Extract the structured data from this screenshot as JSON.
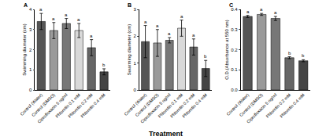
{
  "chart_data": [
    {
      "type": "bar",
      "title": "A",
      "ylabel": "Swimming diameter (cm)",
      "categories": [
        "Control (Water)",
        "Control (DMSO)",
        "Ciprofloxacin 5 ng/ml",
        "Phloretin 0.1 mM",
        "Phloretin 0.2 mM",
        "Phloretin 0.4 mM"
      ],
      "values": [
        3.4,
        2.95,
        3.3,
        2.95,
        2.1,
        0.9
      ],
      "errors": [
        0.4,
        0.4,
        0.25,
        0.35,
        0.4,
        0.15
      ],
      "annotations": [
        "a",
        "a",
        "a",
        "a",
        "a",
        "b"
      ],
      "colors": [
        "#555555",
        "#9a9a9a",
        "#777777",
        "#d9d9d9",
        "#666666",
        "#444444"
      ],
      "ylim": [
        0,
        4
      ],
      "yticks": [
        0,
        1,
        2,
        3,
        4
      ],
      "grid": false
    },
    {
      "type": "bar",
      "title": "B",
      "ylabel": "Swarming diameter (cm)",
      "xlabel": "Treatment",
      "categories": [
        "Control (Water)",
        "Control (DMSO)",
        "Ciprofloxacin 5 ng/ml",
        "Phloretin 0.1 mM",
        "Phloretin 0.2 mM",
        "Phloretin 0.4 mM"
      ],
      "values": [
        1.8,
        1.75,
        1.85,
        2.3,
        1.6,
        0.8
      ],
      "errors": [
        0.6,
        0.5,
        0.1,
        0.3,
        0.3,
        0.3
      ],
      "annotations": [
        "a",
        "a",
        "a",
        "a",
        "a",
        "b"
      ],
      "colors": [
        "#555555",
        "#9a9a9a",
        "#777777",
        "#d9d9d9",
        "#666666",
        "#444444"
      ],
      "ylim": [
        0,
        3
      ],
      "yticks": [
        0,
        1,
        2,
        3
      ],
      "grid": false
    },
    {
      "type": "bar",
      "title": "C",
      "ylabel": "O.D.(Absorbance at 550 nm)",
      "categories": [
        "Control (Water)",
        "Control (DMSO)",
        "Ciprofloxacin 5 ng/ml",
        "Phloretin 0.2 mM",
        "Phloretin 0.4 mM"
      ],
      "values": [
        0.365,
        0.375,
        0.355,
        0.16,
        0.145
      ],
      "errors": [
        0.005,
        0.005,
        0.01,
        0.005,
        0.005
      ],
      "annotations": [
        "a",
        "a",
        "a",
        "b",
        "b"
      ],
      "colors": [
        "#555555",
        "#9a9a9a",
        "#777777",
        "#666666",
        "#444444"
      ],
      "ylim": [
        0,
        0.4
      ],
      "yticks": [
        {
          "value": 0,
          "label": "0.0"
        },
        {
          "value": 0.1,
          "label": "0.1"
        },
        {
          "value": 0.2,
          "label": "0.2"
        },
        {
          "value": 0.3,
          "label": "0.3"
        },
        {
          "value": 0.4,
          "label": "0.4"
        }
      ],
      "grid": false
    }
  ]
}
